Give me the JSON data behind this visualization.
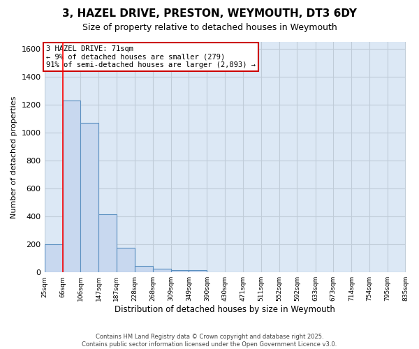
{
  "title": "3, HAZEL DRIVE, PRESTON, WEYMOUTH, DT3 6DY",
  "subtitle": "Size of property relative to detached houses in Weymouth",
  "xlabel": "Distribution of detached houses by size in Weymouth",
  "ylabel": "Number of detached properties",
  "bin_edges": [
    25,
    66,
    106,
    147,
    187,
    228,
    268,
    309,
    349,
    390,
    430,
    471,
    511,
    552,
    592,
    633,
    673,
    714,
    754,
    795,
    835
  ],
  "bar_heights": [
    200,
    1230,
    1070,
    415,
    175,
    45,
    25,
    15,
    15,
    0,
    0,
    0,
    0,
    0,
    0,
    0,
    0,
    0,
    0,
    0
  ],
  "bar_color": "#c8d8ef",
  "bar_edge_color": "#5a8fc0",
  "red_line_x": 66,
  "ylim": [
    0,
    1650
  ],
  "yticks": [
    0,
    200,
    400,
    600,
    800,
    1000,
    1200,
    1400,
    1600
  ],
  "annotation_text": "3 HAZEL DRIVE: 71sqm\n← 9% of detached houses are smaller (279)\n91% of semi-detached houses are larger (2,893) →",
  "annotation_box_color": "#ffffff",
  "annotation_box_edge_color": "#cc0000",
  "background_color": "#dce8f5",
  "grid_color": "#c0ccd8",
  "fig_background_color": "#ffffff",
  "footer_text": "Contains HM Land Registry data © Crown copyright and database right 2025.\nContains public sector information licensed under the Open Government Licence v3.0.",
  "tick_labels": [
    "25sqm",
    "66sqm",
    "106sqm",
    "147sqm",
    "187sqm",
    "228sqm",
    "268sqm",
    "309sqm",
    "349sqm",
    "390sqm",
    "430sqm",
    "471sqm",
    "511sqm",
    "552sqm",
    "592sqm",
    "633sqm",
    "673sqm",
    "714sqm",
    "754sqm",
    "795sqm",
    "835sqm"
  ]
}
